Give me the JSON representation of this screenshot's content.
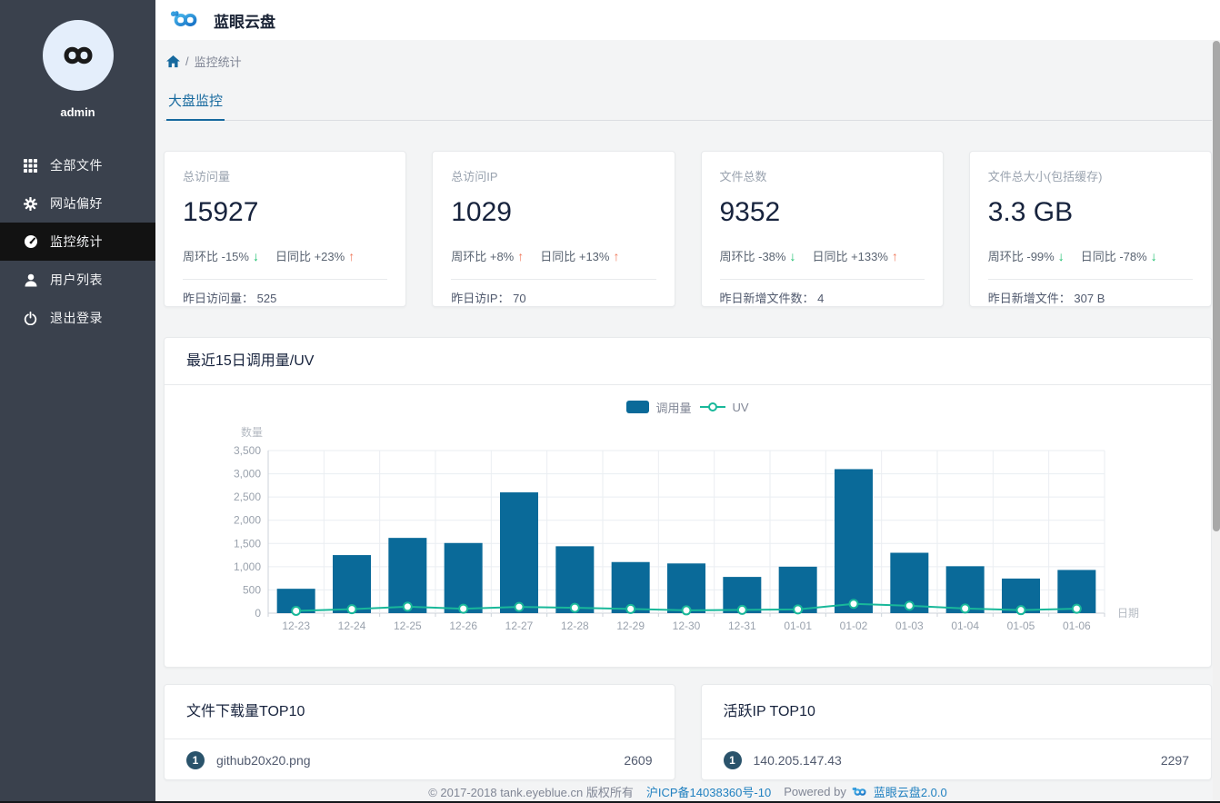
{
  "app": {
    "title": "蓝眼云盘"
  },
  "sidebar": {
    "username": "admin",
    "items": [
      {
        "label": "全部文件",
        "icon": "grid-icon",
        "active": false
      },
      {
        "label": "网站偏好",
        "icon": "gear-icon",
        "active": false
      },
      {
        "label": "监控统计",
        "icon": "dashboard-icon",
        "active": true
      },
      {
        "label": "用户列表",
        "icon": "user-icon",
        "active": false
      },
      {
        "label": "退出登录",
        "icon": "power-icon",
        "active": false
      }
    ]
  },
  "breadcrumb": {
    "home_icon": "home-icon",
    "separator": "/",
    "current": "监控统计"
  },
  "tabs": {
    "active_label": "大盘监控"
  },
  "stat_cards": [
    {
      "label": "总访问量",
      "value": "15927",
      "week_text": "周环比 -15%",
      "week_dir": "down",
      "day_text": "日同比 +23%",
      "day_dir": "up",
      "foot_label": "昨日访问量：",
      "foot_value": "525"
    },
    {
      "label": "总访问IP",
      "value": "1029",
      "week_text": "周环比 +8%",
      "week_dir": "up",
      "day_text": "日同比 +13%",
      "day_dir": "up",
      "foot_label": "昨日访IP：",
      "foot_value": "70"
    },
    {
      "label": "文件总数",
      "value": "9352",
      "week_text": "周环比 -38%",
      "week_dir": "down",
      "day_text": "日同比 +133%",
      "day_dir": "up",
      "foot_label": "昨日新增文件数：",
      "foot_value": "4"
    },
    {
      "label": "文件总大小(包括缓存)",
      "value": "3.3 GB",
      "week_text": "周环比 -99%",
      "week_dir": "down",
      "day_text": "日同比 -78%",
      "day_dir": "down",
      "foot_label": "昨日新增文件：",
      "foot_value": "307 B"
    }
  ],
  "chart_card": {
    "title": "最近15日调用量/UV"
  },
  "chart_data": {
    "type": "bar",
    "title": "最近15日调用量/UV",
    "categories": [
      "12-23",
      "12-24",
      "12-25",
      "12-26",
      "12-27",
      "12-28",
      "12-29",
      "12-30",
      "12-31",
      "01-01",
      "01-02",
      "01-03",
      "01-04",
      "01-05",
      "01-06"
    ],
    "series": [
      {
        "name": "调用量",
        "type": "bar",
        "color": "#0a6a99",
        "values": [
          525,
          1250,
          1620,
          1510,
          2600,
          1440,
          1100,
          1070,
          780,
          1000,
          3100,
          1300,
          1010,
          745,
          930
        ]
      },
      {
        "name": "UV",
        "type": "line",
        "color": "#19b89a",
        "values": [
          50,
          85,
          140,
          95,
          135,
          115,
          90,
          60,
          70,
          80,
          200,
          160,
          100,
          65,
          95
        ]
      }
    ],
    "xlabel": "日期",
    "ylabel": "数量",
    "ylim": [
      0,
      3500
    ],
    "ytick_step": 500,
    "legend_position": "top-center",
    "grid": true
  },
  "top_lists": [
    {
      "title": "文件下载量TOP10",
      "rows": [
        {
          "rank": "1",
          "name": "github20x20.png",
          "value": "2609"
        }
      ]
    },
    {
      "title": "活跃IP TOP10",
      "rows": [
        {
          "rank": "1",
          "name": "140.205.147.43",
          "value": "2297"
        }
      ]
    }
  ],
  "footer": {
    "copyright": "© 2017-2018 tank.eyeblue.cn 版权所有",
    "icp_link": "沪ICP备14038360号-10",
    "powered_by": "Powered by",
    "brand_link": "蓝眼云盘2.0.0"
  },
  "colors": {
    "accent_blue": "#16699e",
    "bar_blue": "#0a6a99",
    "uv_teal": "#19b89a",
    "trend_up": "#f0785a",
    "trend_down": "#19be6b",
    "sidebar_bg": "#3a414d",
    "sidebar_active_bg": "#121212",
    "link_blue": "#2080c0",
    "badge_bg": "#2a536b"
  }
}
